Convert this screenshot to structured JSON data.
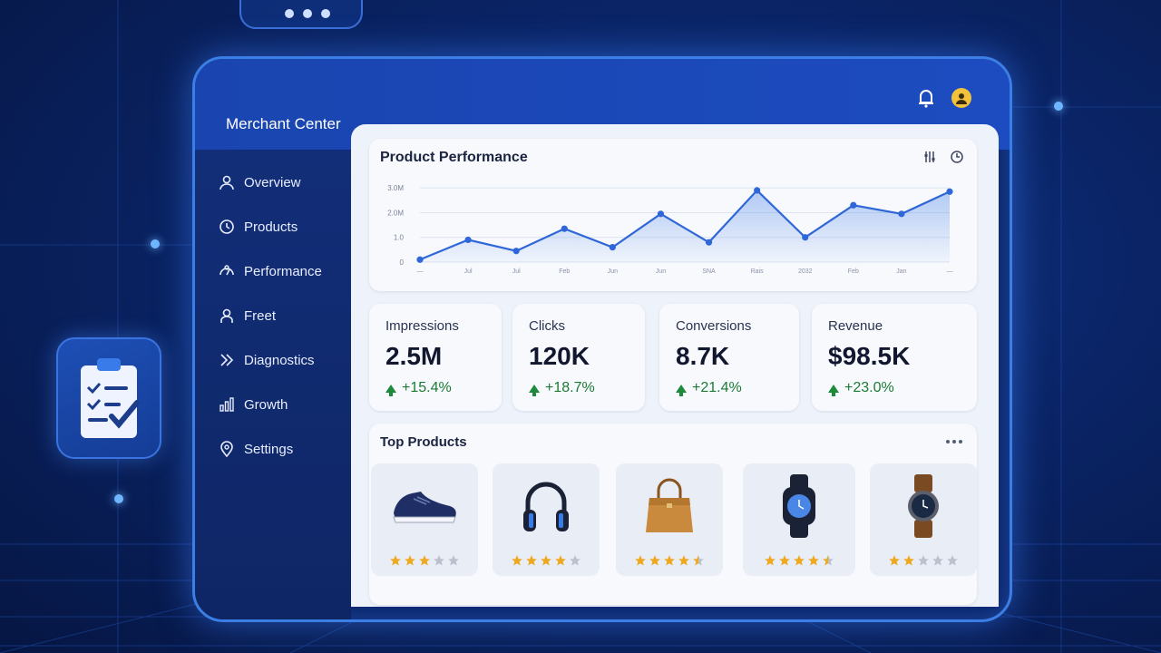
{
  "app": {
    "title": "Merchant Center"
  },
  "header": {
    "notification_icon": "bell-icon",
    "avatar_icon": "user-avatar-icon",
    "avatar_color": "#f2c23a"
  },
  "sidebar": {
    "items": [
      {
        "label": "Overview",
        "icon": "user-icon"
      },
      {
        "label": "Products",
        "icon": "clock-icon"
      },
      {
        "label": "Performance",
        "icon": "gauge-icon"
      },
      {
        "label": "Freet",
        "icon": "person-icon"
      },
      {
        "label": "Diagnostics",
        "icon": "diagnostics-icon"
      },
      {
        "label": "Growth",
        "icon": "growth-icon"
      },
      {
        "label": "Settings",
        "icon": "location-pin-icon"
      }
    ]
  },
  "performance": {
    "title": "Product Performance",
    "tools": [
      "filter-icon",
      "refresh-icon"
    ]
  },
  "chart_data": {
    "type": "area",
    "title": "Product Performance",
    "y_tick_labels": [
      "3.0M",
      "2.0M",
      "1.0",
      "0"
    ],
    "x_tick_labels": [
      "—",
      "Jul",
      "Jul",
      "Feb",
      "Jun",
      "Jun",
      "SNA",
      "Rais",
      "2032",
      "Feb",
      "Jan",
      "—"
    ],
    "values": [
      0.1,
      0.9,
      0.45,
      1.35,
      0.6,
      1.95,
      0.8,
      2.9,
      1.0,
      2.3,
      1.95,
      2.85
    ],
    "color": "#2f66d8",
    "ylim": [
      0,
      3.3
    ],
    "grid": true
  },
  "stats": [
    {
      "label": "Impressions",
      "value": "2.5M",
      "delta": "+15.4%"
    },
    {
      "label": "Clicks",
      "value": "120K",
      "delta": "+18.7%"
    },
    {
      "label": "Conversions",
      "value": "8.7K",
      "delta": "+21.4%"
    },
    {
      "label": "Revenue",
      "value": "$98.5K",
      "delta": "+23.0%"
    }
  ],
  "top_products": {
    "title": "Top Products",
    "items": [
      {
        "icon": "sneaker-icon",
        "rating": 3,
        "max": 5
      },
      {
        "icon": "headphones-icon",
        "rating": 4,
        "max": 5
      },
      {
        "icon": "handbag-icon",
        "rating": 4.5,
        "max": 5
      },
      {
        "icon": "smartwatch-icon",
        "rating": 4.5,
        "max": 5
      },
      {
        "icon": "wristwatch-icon",
        "rating": 2,
        "max": 5
      }
    ]
  },
  "colors": {
    "accent": "#2f66d8",
    "positive": "#1c8a3a",
    "star": "#f0a81c",
    "star_empty": "#b9c0cc"
  }
}
